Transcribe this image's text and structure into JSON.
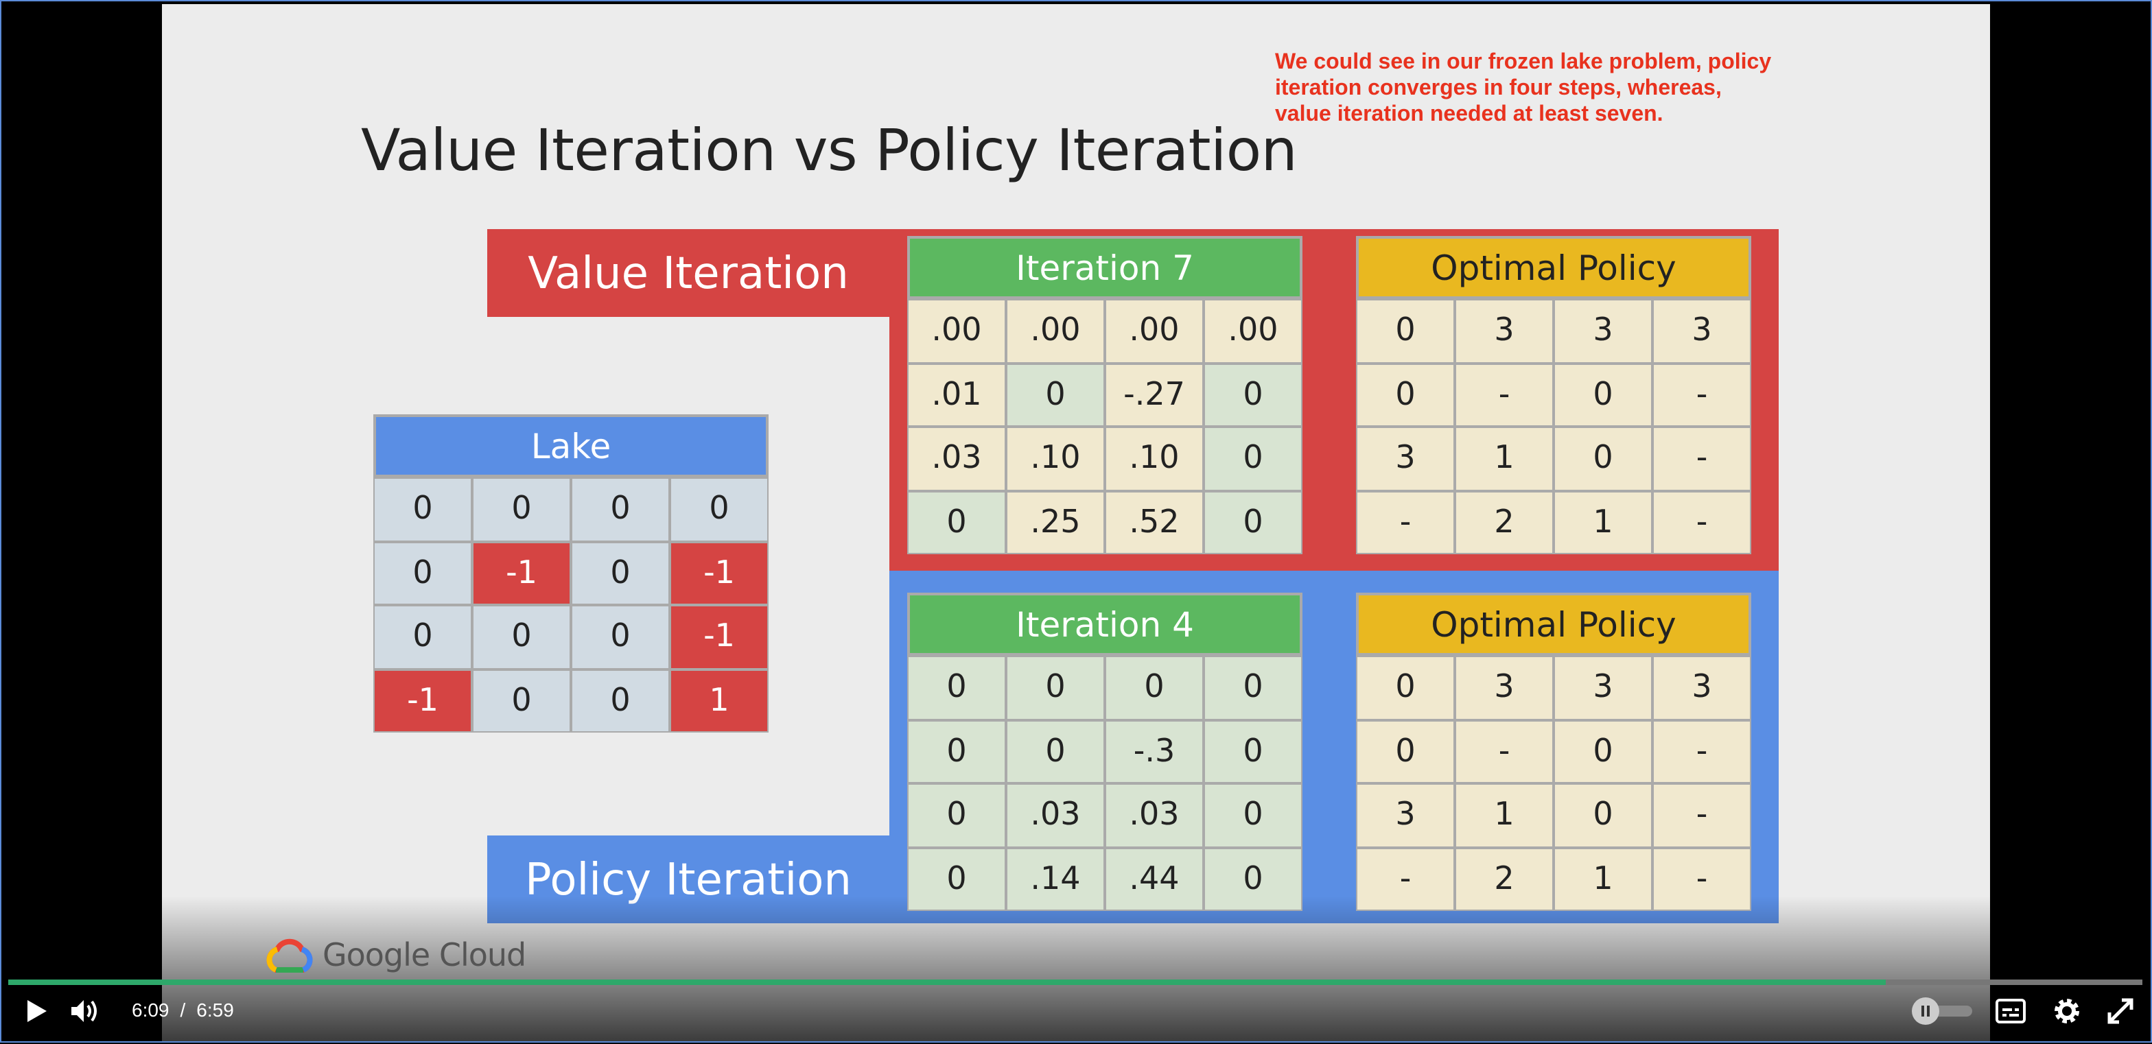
{
  "slide": {
    "title": "Value Iteration vs Policy Iteration",
    "caption": [
      "We could see in our frozen lake problem, policy",
      "iteration converges in four steps, whereas,",
      "value iteration needed at least seven."
    ],
    "value_iteration": "Value Iteration",
    "policy_iteration": "Policy Iteration",
    "lake": {
      "title": "Lake",
      "rows": [
        [
          "0",
          "0",
          "0",
          "0"
        ],
        [
          "0",
          "-1",
          "0",
          "-1"
        ],
        [
          "0",
          "0",
          "0",
          "-1"
        ],
        [
          "-1",
          "0",
          "0",
          "1"
        ]
      ]
    },
    "value_table": {
      "title": "Iteration 7",
      "rows": [
        [
          ".00",
          ".00",
          ".00",
          ".00"
        ],
        [
          ".01",
          "0",
          "-.27",
          "0"
        ],
        [
          ".03",
          ".10",
          ".10",
          "0"
        ],
        [
          "0",
          ".25",
          ".52",
          "0"
        ]
      ]
    },
    "value_policy": {
      "title": "Optimal Policy",
      "rows": [
        [
          "0",
          "3",
          "3",
          "3"
        ],
        [
          "0",
          "-",
          "0",
          "-"
        ],
        [
          "3",
          "1",
          "0",
          "-"
        ],
        [
          "-",
          "2",
          "1",
          "-"
        ]
      ]
    },
    "policy_table": {
      "title": "Iteration 4",
      "rows": [
        [
          "0",
          "0",
          "0",
          "0"
        ],
        [
          "0",
          "0",
          "-.3",
          "0"
        ],
        [
          "0",
          ".03",
          ".03",
          "0"
        ],
        [
          "0",
          ".14",
          ".44",
          "0"
        ]
      ]
    },
    "policy_policy": {
      "title": "Optimal Policy",
      "rows": [
        [
          "0",
          "3",
          "3",
          "3"
        ],
        [
          "0",
          "-",
          "0",
          "-"
        ],
        [
          "3",
          "1",
          "0",
          "-"
        ],
        [
          "-",
          "2",
          "1",
          "-"
        ]
      ]
    },
    "logo": "Google Cloud"
  },
  "player": {
    "current_time": "6:09",
    "separator": "/",
    "duration": "6:59"
  }
}
